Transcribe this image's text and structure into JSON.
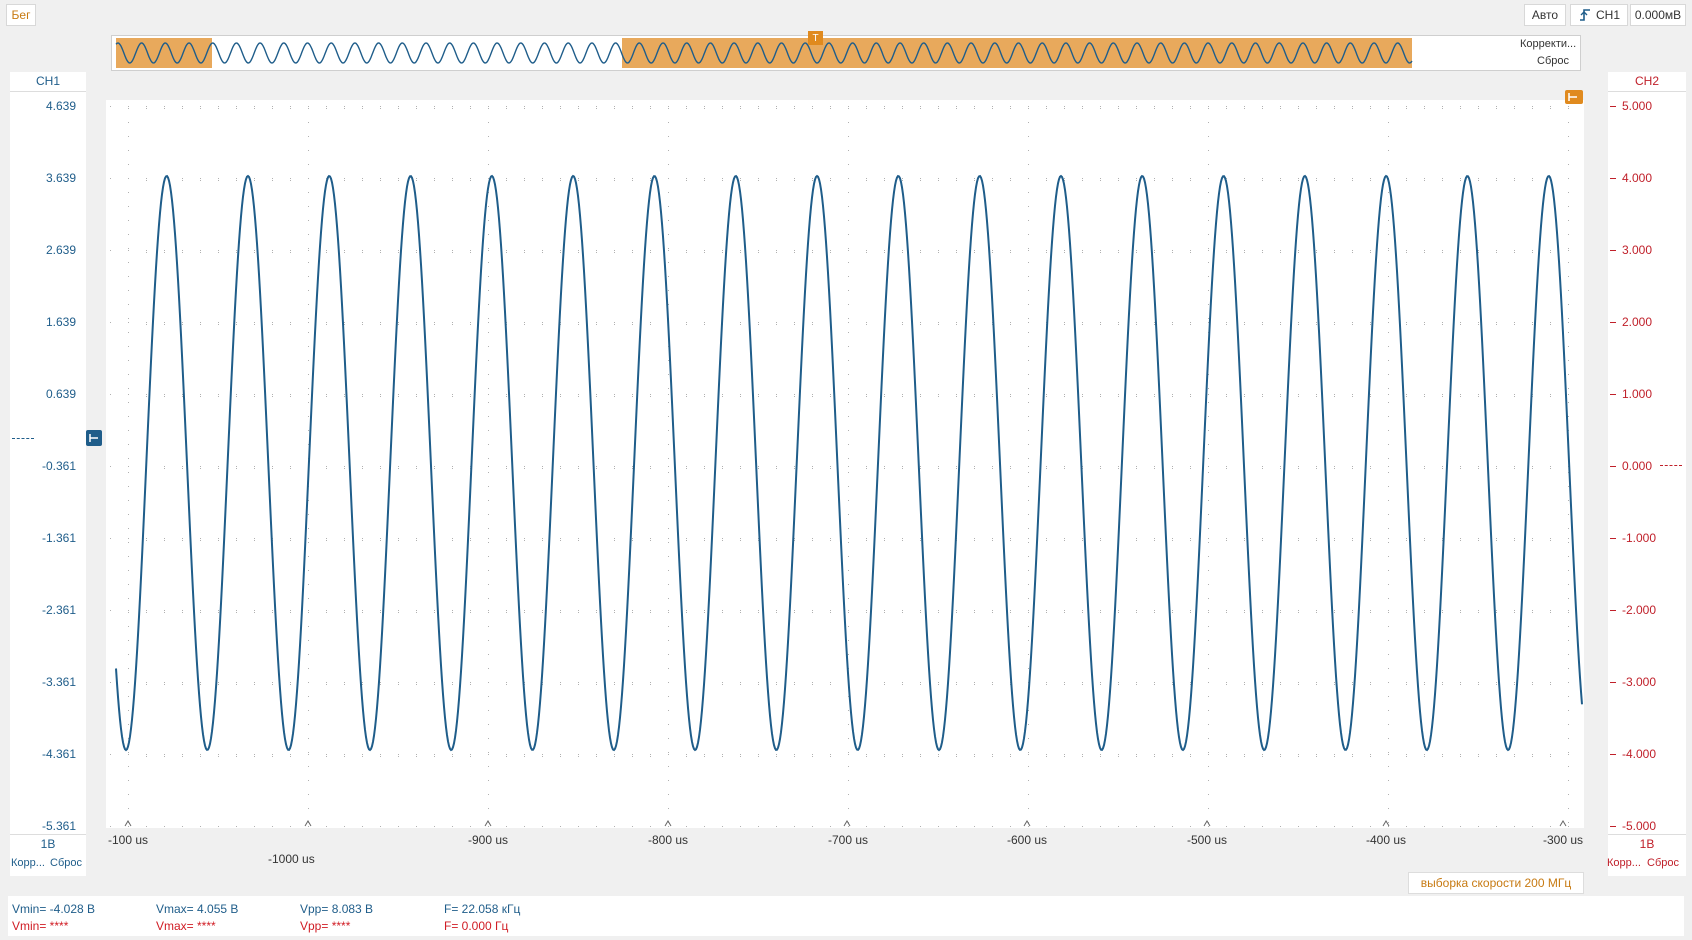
{
  "toolbar": {
    "run_label": "Бег",
    "auto_label": "Авто",
    "trigger_channel": "CH1",
    "trigger_level": "0.000мВ"
  },
  "overview": {
    "correct_label": "Корректи...",
    "reset_label": "Сброс",
    "trigger_marker": "T"
  },
  "ch1": {
    "name": "CH1",
    "scale": "1В",
    "correct_label": "Корр...",
    "reset_label": "Сброс",
    "ticks": [
      "4.639",
      "3.639",
      "2.639",
      "1.639",
      "0.639",
      "-0.361",
      "-1.361",
      "-2.361",
      "-3.361",
      "-4.361",
      "-5.361"
    ],
    "color": "#1f5d8a"
  },
  "ch2": {
    "name": "CH2",
    "scale": "1В",
    "correct_label": "Корр...",
    "reset_label": "Сброс",
    "ticks": [
      "5.000",
      "4.000",
      "3.000",
      "2.000",
      "1.000",
      "0.000",
      "-1.000",
      "-2.000",
      "-3.000",
      "-4.000",
      "-5.000"
    ],
    "color": "#c0202a"
  },
  "xaxis": {
    "ticks": [
      "-100 us",
      "-900 us",
      "-800 us",
      "-700 us",
      "-600 us",
      "-500 us",
      "-400 us",
      "-300 us"
    ],
    "extra_label": "-1000 us"
  },
  "sample_rate_label": "выборка скорости 200 МГц",
  "measurements": {
    "ch1": {
      "vmin": "Vmin= -4.028 В",
      "vmax": "Vmax= 4.055 В",
      "vpp": "Vpp= 8.083 В",
      "freq": "F= 22.058 кГц"
    },
    "ch2": {
      "vmin": "Vmin= ****",
      "vmax": "Vmax= ****",
      "vpp": "Vpp= ****",
      "freq": "F= 0.000 Гц"
    }
  },
  "accent_color": "#e8a95c"
}
